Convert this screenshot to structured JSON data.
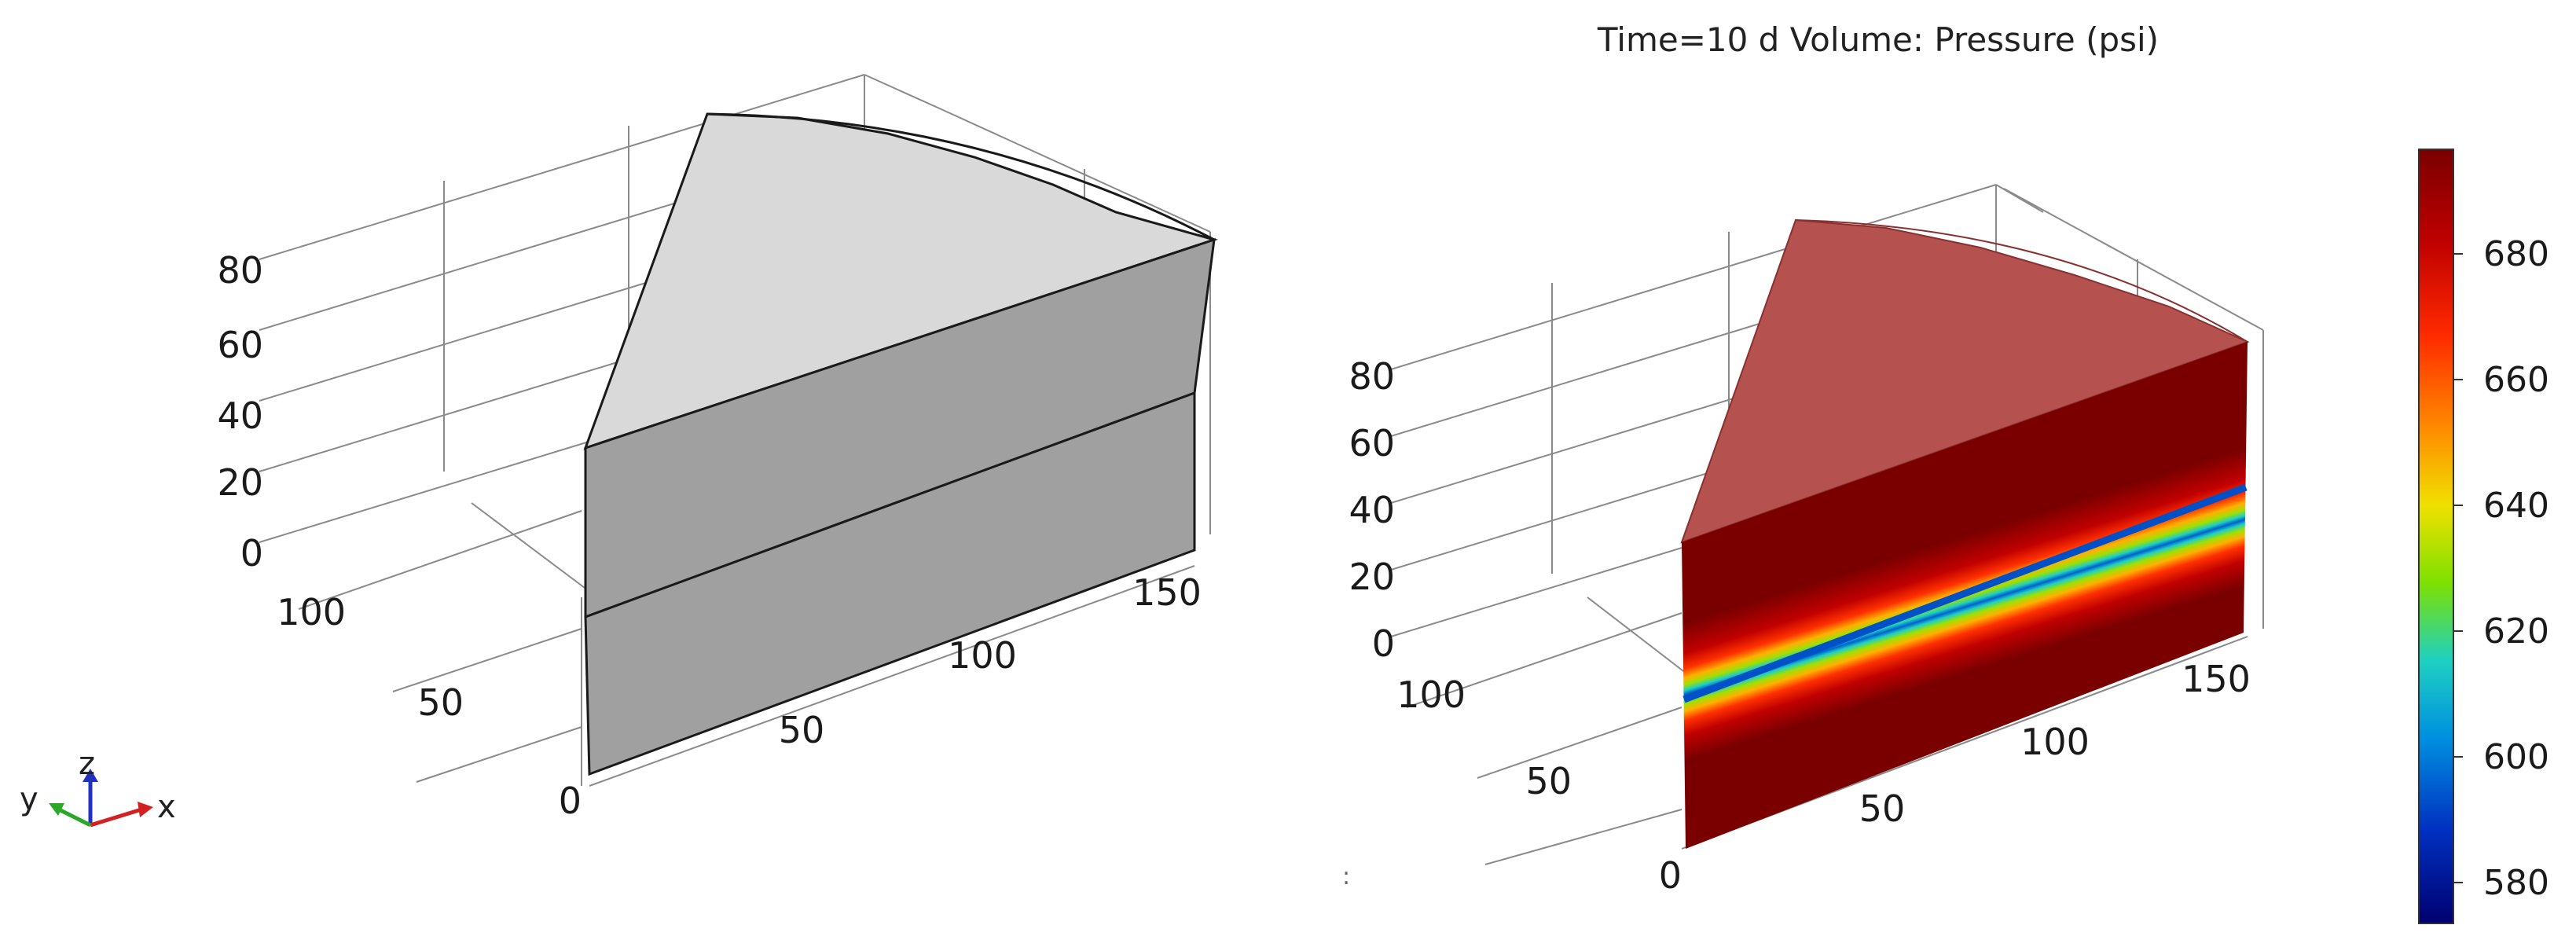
{
  "left_plot": {
    "z_ticks": [
      "80",
      "60",
      "40",
      "20",
      "0"
    ],
    "y_ticks": [
      "100",
      "50",
      "0"
    ],
    "x_ticks": [
      "50",
      "100",
      "150"
    ],
    "top_face_color": "#d9d9d9",
    "side_face_color": "#a0a0a0"
  },
  "right_plot": {
    "title": "Time=10 d   Volume: Pressure (psi)",
    "z_ticks": [
      "80",
      "60",
      "40",
      "20",
      "0"
    ],
    "y_ticks": [
      "100",
      "50",
      "0"
    ],
    "x_ticks": [
      "50",
      "100",
      "150"
    ],
    "top_face_color": "#b5524f",
    "colorbar": {
      "ticks": [
        "680",
        "660",
        "640",
        "620",
        "600",
        "580"
      ],
      "colors": [
        "#7a0000",
        "#c00000",
        "#ff2a00",
        "#ff8a00",
        "#f0e000",
        "#7ee000",
        "#1ed0c0",
        "#0090e0",
        "#0030c0",
        "#000070"
      ]
    }
  },
  "triad": {
    "z_label": "z",
    "y_label": "y",
    "x_label": "x",
    "x_color": "#d32020",
    "y_color": "#2aa82a",
    "z_color": "#2030c0"
  },
  "stray_mark": ":"
}
